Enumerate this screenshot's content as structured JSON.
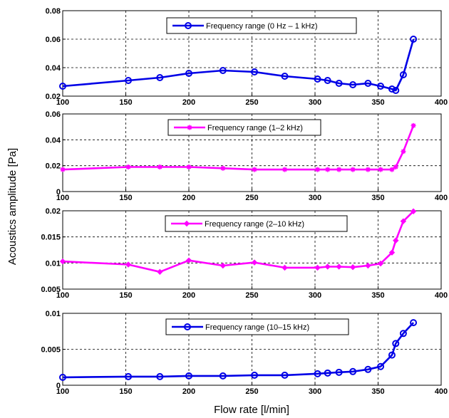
{
  "figure": {
    "ylabel": "Acoustics amplitude [Pa]",
    "xlabel": "Flow rate [l/min]"
  },
  "chart_data": [
    {
      "type": "line",
      "legend": "Frequency range (0 Hz – 1 kHz)",
      "legend_placement": "top-center",
      "grid": true,
      "color": "#0000e6",
      "marker": "circle",
      "xlim": [
        100,
        400
      ],
      "ylim": [
        0.02,
        0.08
      ],
      "xticks": [
        100,
        150,
        200,
        250,
        300,
        350,
        400
      ],
      "yticks": [
        0.02,
        0.04,
        0.06,
        0.08
      ],
      "ytick_labels": [
        "0.02",
        "0.04",
        "0.06",
        "0.08"
      ],
      "x": [
        100,
        152,
        177,
        200,
        227,
        252,
        276,
        302,
        310,
        319,
        330,
        342,
        352,
        361,
        364,
        370,
        378
      ],
      "y": [
        0.027,
        0.031,
        0.033,
        0.036,
        0.038,
        0.037,
        0.034,
        0.032,
        0.031,
        0.029,
        0.028,
        0.029,
        0.027,
        0.025,
        0.024,
        0.035,
        0.06
      ]
    },
    {
      "type": "line",
      "legend": "Frequency range (1–2 kHz)",
      "legend_placement": "top-center",
      "grid": true,
      "color": "#ff00ff",
      "marker": "star",
      "xlim": [
        100,
        400
      ],
      "ylim": [
        0,
        0.06
      ],
      "xticks": [
        100,
        150,
        200,
        250,
        300,
        350,
        400
      ],
      "yticks": [
        0,
        0.02,
        0.04,
        0.06
      ],
      "ytick_labels": [
        "0",
        "0.02",
        "0.04",
        "0.06"
      ],
      "x": [
        100,
        152,
        177,
        200,
        227,
        252,
        276,
        302,
        310,
        319,
        330,
        342,
        352,
        361,
        364,
        370,
        378
      ],
      "y": [
        0.017,
        0.019,
        0.019,
        0.019,
        0.018,
        0.017,
        0.017,
        0.017,
        0.017,
        0.017,
        0.017,
        0.017,
        0.017,
        0.017,
        0.019,
        0.031,
        0.051
      ]
    },
    {
      "type": "line",
      "legend": "Frequency range (2–10 kHz)",
      "legend_placement": "top-center",
      "grid": true,
      "color": "#ff00ff",
      "marker": "diamond",
      "xlim": [
        100,
        400
      ],
      "ylim": [
        0.005,
        0.02
      ],
      "xticks": [
        100,
        150,
        200,
        250,
        300,
        350,
        400
      ],
      "yticks": [
        0.005,
        0.01,
        0.015,
        0.02
      ],
      "ytick_labels": [
        "0.005",
        "0.01",
        "0.015",
        "0.02"
      ],
      "x": [
        100,
        152,
        177,
        200,
        227,
        252,
        276,
        302,
        310,
        319,
        330,
        342,
        352,
        361,
        364,
        370,
        378
      ],
      "y": [
        0.0103,
        0.0097,
        0.0083,
        0.0105,
        0.0095,
        0.0101,
        0.0091,
        0.0091,
        0.0093,
        0.0093,
        0.0092,
        0.0095,
        0.0099,
        0.012,
        0.0143,
        0.018,
        0.0199
      ]
    },
    {
      "type": "line",
      "legend": "Frequency range (10–15 kHz)",
      "legend_placement": "top-center",
      "grid": true,
      "color": "#0000e6",
      "marker": "circle",
      "xlim": [
        100,
        400
      ],
      "ylim": [
        0,
        0.01
      ],
      "xticks": [
        100,
        150,
        200,
        250,
        300,
        350,
        400
      ],
      "yticks": [
        0,
        0.005,
        0.01
      ],
      "ytick_labels": [
        "0",
        "0.005",
        "0.01"
      ],
      "x": [
        100,
        152,
        177,
        200,
        227,
        252,
        276,
        302,
        310,
        319,
        330,
        342,
        352,
        361,
        364,
        370,
        378
      ],
      "y": [
        0.0011,
        0.0012,
        0.0012,
        0.0013,
        0.0013,
        0.0014,
        0.0014,
        0.0016,
        0.0017,
        0.0018,
        0.0019,
        0.0022,
        0.0026,
        0.0042,
        0.0058,
        0.0072,
        0.0087
      ]
    }
  ]
}
